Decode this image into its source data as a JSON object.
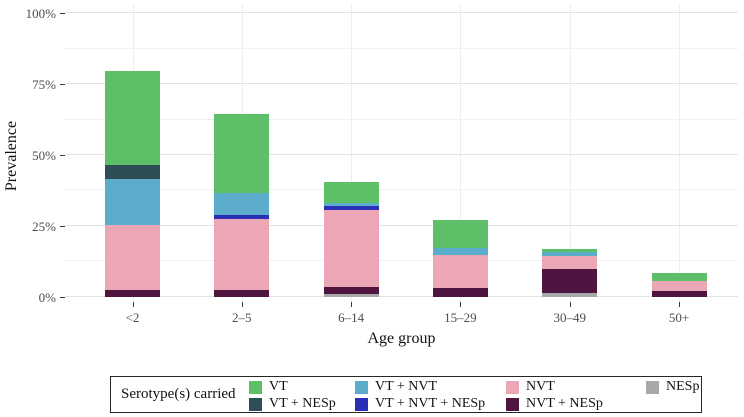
{
  "chart_data": {
    "type": "bar",
    "stacked": true,
    "categories": [
      "<2",
      "2–5",
      "6–14",
      "15–29",
      "30–49",
      "50+"
    ],
    "xlabel": "Age group",
    "ylabel": "Prevalence",
    "ylim": [
      0,
      100
    ],
    "y_major_ticks": [
      0,
      25,
      50,
      75,
      100
    ],
    "y_minor_ticks": [
      12.5,
      37.5,
      62.5,
      87.5
    ],
    "y_tick_labels": [
      "0%",
      "25%",
      "50%",
      "75%",
      "100%"
    ],
    "grid": "horizontal major+minor, vertical at category centers",
    "legend_position": "bottom",
    "stack_order": "bottom to top",
    "series": [
      {
        "name": "NESp",
        "values": [
          0,
          0,
          0.9,
          0,
          1.1,
          0
        ]
      },
      {
        "name": "NVT + NESp",
        "values": [
          2.2,
          2.3,
          2.6,
          3.1,
          8.5,
          2.0
        ]
      },
      {
        "name": "NVT",
        "values": [
          23.0,
          25.2,
          27.0,
          11.4,
          4.7,
          3.5
        ]
      },
      {
        "name": "VT + NVT + NESp",
        "values": [
          0,
          1.3,
          1.4,
          0,
          0,
          0
        ]
      },
      {
        "name": "VT + NVT",
        "values": [
          16.3,
          7.8,
          1.2,
          2.8,
          1.4,
          0
        ]
      },
      {
        "name": "VT + NESp",
        "values": [
          5.0,
          0,
          0,
          0,
          0,
          0
        ]
      },
      {
        "name": "VT",
        "values": [
          33.0,
          28.0,
          7.3,
          9.7,
          1.2,
          2.7
        ]
      }
    ]
  },
  "palette": {
    "VT": "#5dbf68",
    "VT + NESp": "#2f4d55",
    "VT + NVT": "#5badcb",
    "VT + NVT + NESp": "#2b2fb5",
    "NVT": "#eca7b7",
    "NVT + NESp": "#4e1541",
    "NESp": "#a8a8a8"
  },
  "legend": {
    "title": "Serotype(s) carried",
    "items": [
      "VT",
      "VT + NESp",
      "VT + NVT",
      "VT + NVT + NESp",
      "NVT",
      "NVT + NESp",
      "NESp"
    ]
  }
}
